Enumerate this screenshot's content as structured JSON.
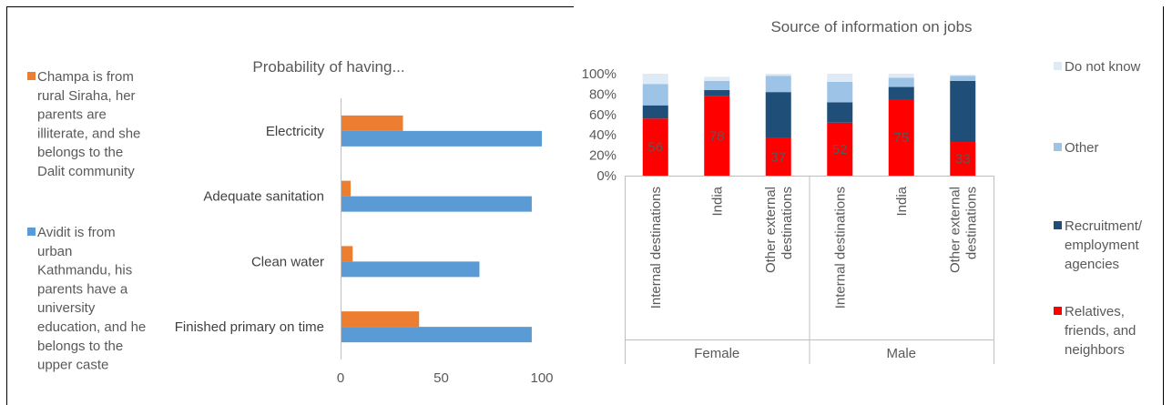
{
  "chart_data": [
    {
      "type": "bar",
      "orientation": "horizontal",
      "title": "Probability of having...",
      "categories": [
        "Electricity",
        "Adequate sanitation",
        "Clean water",
        "Finished primary on time"
      ],
      "series": [
        {
          "name": "Champa is from rural Siraha, her parents are illiterate, and she belongs to the Dalit community",
          "color": "#ED7D31",
          "values": [
            31,
            5,
            6,
            39
          ]
        },
        {
          "name": "Avidit is from urban Kathmandu, his parents have a university education, and he belongs to the upper caste",
          "color": "#5B9BD5",
          "values": [
            100,
            95,
            69,
            95
          ]
        }
      ],
      "xlim": [
        0,
        100
      ],
      "xticks": [
        "0",
        "50",
        "100"
      ],
      "legend_position": "left",
      "grid": false
    },
    {
      "type": "bar",
      "stacked": true,
      "title": "Source of information on jobs",
      "groups": [
        {
          "name": "Female",
          "categories": [
            "Internal destinations",
            "India",
            "Other external destinations"
          ]
        },
        {
          "name": "Male",
          "categories": [
            "Internal destinations",
            "India",
            "Other external destinations"
          ]
        }
      ],
      "series": [
        {
          "name": "Relatives, friends, and neighbors",
          "color": "#FF0000",
          "values": [
            56,
            78,
            37,
            52,
            75,
            33
          ],
          "labels": [
            "56",
            "78",
            "37",
            "52",
            "75",
            "33"
          ]
        },
        {
          "name": "Recruitment/ employment agencies",
          "color": "#1F4E79",
          "values": [
            13,
            6,
            45,
            20,
            12,
            60
          ]
        },
        {
          "name": "Other",
          "color": "#9DC3E6",
          "values": [
            21,
            9,
            16,
            20,
            9,
            5
          ]
        },
        {
          "name": "Do not know",
          "color": "#DEEBF7",
          "values": [
            10,
            4,
            2,
            8,
            4,
            1
          ]
        }
      ],
      "ylim": [
        0,
        100
      ],
      "yticks": [
        "0%",
        "20%",
        "40%",
        "60%",
        "80%",
        "100%"
      ],
      "legend_position": "right",
      "grid": false
    }
  ]
}
